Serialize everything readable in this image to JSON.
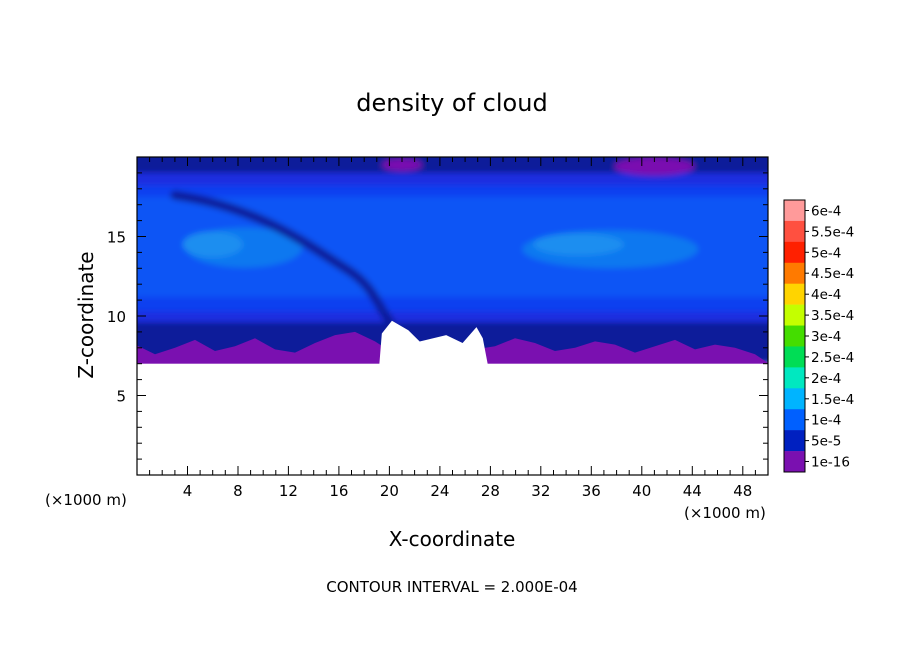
{
  "chart_data": {
    "type": "heatmap",
    "title": "density of cloud",
    "xlabel": "X-coordinate",
    "ylabel": "Z-coordinate",
    "x_unit_label": "(×1000 m)",
    "z_unit_label": "(×1000 m)",
    "xlim": [
      0,
      50
    ],
    "ylim": [
      0,
      20
    ],
    "x_ticks": [
      4,
      8,
      12,
      16,
      20,
      24,
      28,
      32,
      36,
      40,
      44,
      48
    ],
    "y_ticks": [
      5,
      10,
      15
    ],
    "x_tick_labels": [
      "4",
      "8",
      "12",
      "16",
      "20",
      "24",
      "28",
      "32",
      "36",
      "40",
      "44",
      "48"
    ],
    "y_tick_labels": [
      "5",
      "10",
      "15"
    ],
    "footer": "CONTOUR INTERVAL = 2.000E-04",
    "colorbar": {
      "labels": [
        "6e-4",
        "5.5e-4",
        "5e-4",
        "4.5e-4",
        "4e-4",
        "3.5e-4",
        "3e-4",
        "2.5e-4",
        "2e-4",
        "1.5e-4",
        "1e-4",
        "5e-5",
        "1e-16"
      ],
      "colors": [
        "#ff9a9a",
        "#ff5040",
        "#ff2000",
        "#ff7a00",
        "#ffd400",
        "#c4ff00",
        "#44dd00",
        "#00dd55",
        "#00e8c0",
        "#00b4ff",
        "#0060ff",
        "#0020c0",
        "#7a10b0"
      ]
    },
    "field_colors": {
      "level_0": "#7a10b0",
      "level_1": "#0a1a9a",
      "level_2": "#1e2ee0",
      "level_3": "#1040f0",
      "level_4": "#0a55f5",
      "level_5": "#0a78f0",
      "level_6": "#1a8ef0"
    },
    "cloud_base_km": 7.0,
    "cloud_top_km": 20.0
  }
}
